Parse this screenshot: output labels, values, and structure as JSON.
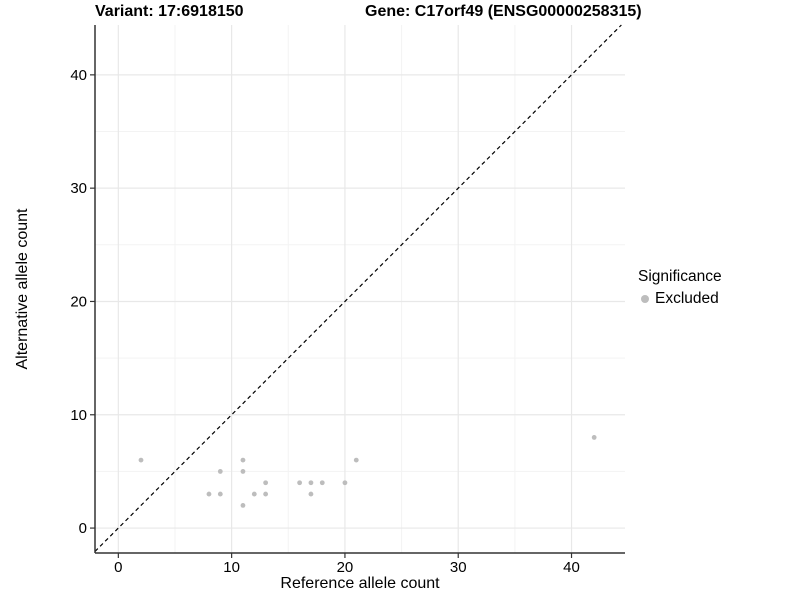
{
  "chart_data": {
    "type": "scatter",
    "title_left": "Variant: 17:6918150",
    "title_right": "Gene: C17orf49 (ENSG00000258315)",
    "xlabel": "Reference allele count",
    "ylabel": "Alternative allele count",
    "xlim": [
      -2.06,
      44.72
    ],
    "ylim": [
      -2.2,
      44.4
    ],
    "x_ticks": [
      0,
      10,
      20,
      30,
      40
    ],
    "y_ticks": [
      0,
      10,
      20,
      30,
      40
    ],
    "x_minor_ticks": [
      5,
      15,
      25,
      35
    ],
    "y_minor_ticks": [
      5,
      15,
      25,
      35
    ],
    "grid": {
      "major": true,
      "minor": true
    },
    "identity_line": {
      "slope": 1,
      "intercept": 0,
      "style": "dashed",
      "color": "#000000"
    },
    "legend": {
      "title": "Significance",
      "position": "right",
      "entries": [
        {
          "label": "Excluded",
          "color": "#bdbdbd"
        }
      ]
    },
    "series": [
      {
        "name": "Excluded",
        "color": "#bdbdbd",
        "marker": "circle",
        "points": [
          [
            2,
            6
          ],
          [
            8,
            3
          ],
          [
            9,
            3
          ],
          [
            9,
            5
          ],
          [
            11,
            2
          ],
          [
            11,
            5
          ],
          [
            11,
            6
          ],
          [
            12,
            3
          ],
          [
            13,
            3
          ],
          [
            13,
            4
          ],
          [
            16,
            4
          ],
          [
            17,
            3
          ],
          [
            17,
            4
          ],
          [
            18,
            4
          ],
          [
            20,
            4
          ],
          [
            21,
            6
          ],
          [
            42,
            8
          ]
        ]
      }
    ]
  }
}
